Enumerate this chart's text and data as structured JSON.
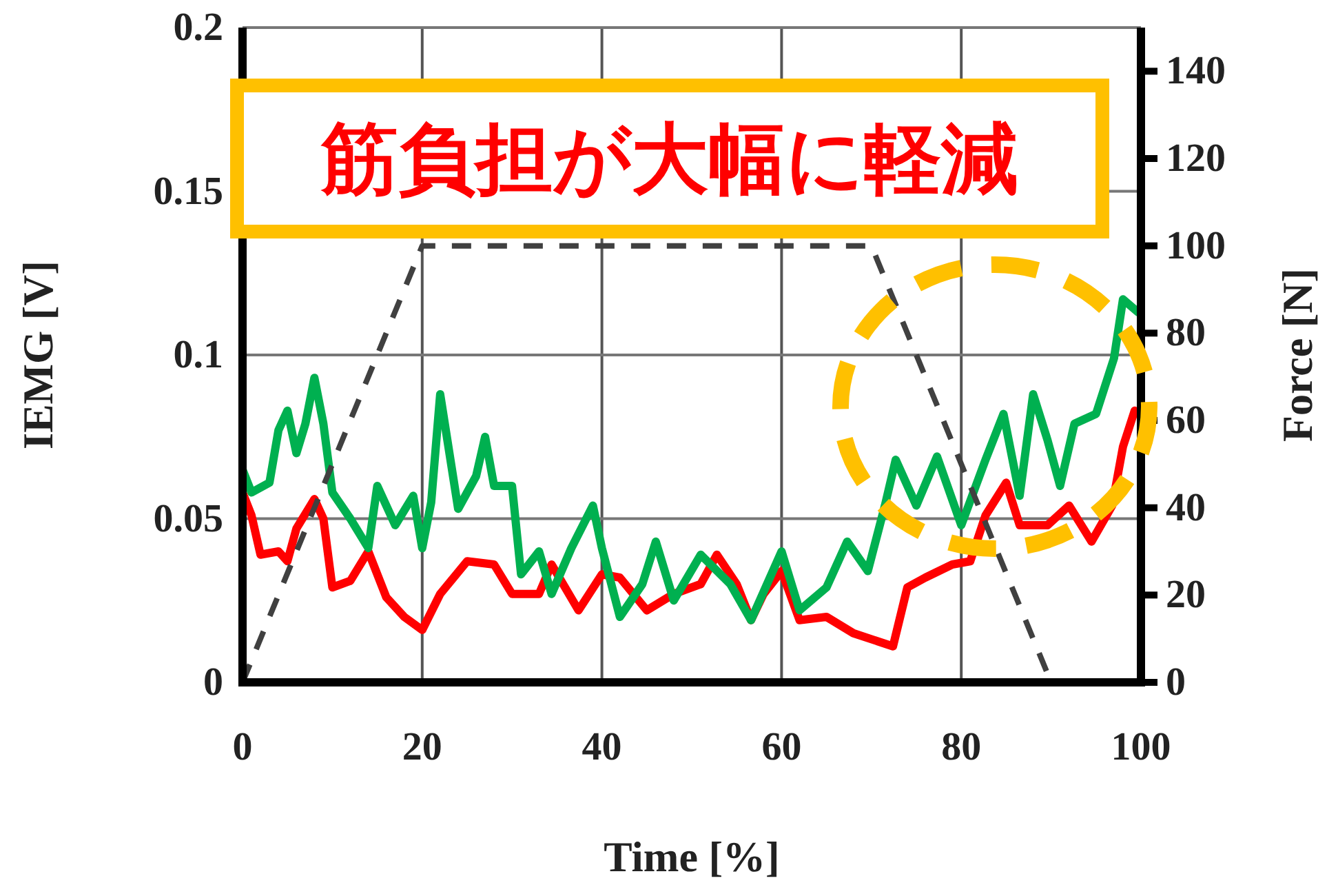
{
  "chart_data": {
    "type": "line",
    "xlabel": "Time [%]",
    "ylabel": "IEMG [V]",
    "y2label": "Force [N]",
    "annotations": [
      "筋負担が大幅に軽減"
    ],
    "xlim": [
      0,
      100
    ],
    "xticks": [
      0,
      20,
      40,
      60,
      80,
      100
    ],
    "ylim": [
      0,
      0.2
    ],
    "yticks": [
      0,
      0.05,
      0.1,
      0.15,
      0.2
    ],
    "y2lim": [
      0,
      150
    ],
    "y2ticks": [
      0,
      20,
      40,
      60,
      80,
      100,
      120,
      140
    ],
    "grid": true,
    "marker": "none",
    "series": [
      {
        "color": "#ff0000",
        "x": [
          0,
          1,
          2,
          4,
          5,
          6,
          8,
          9,
          10,
          12,
          14,
          16,
          18,
          20,
          22,
          25,
          28,
          30,
          33,
          34.4,
          37.4,
          40,
          42,
          45,
          48,
          51,
          52.8,
          55,
          56.6,
          58,
          60,
          62,
          65,
          68,
          72.4,
          74,
          76,
          79,
          81,
          82.7,
          85,
          86.5,
          89.6,
          92,
          94.5,
          96.8,
          98,
          99.3
        ],
        "values": [
          0.058,
          0.051,
          0.039,
          0.04,
          0.037,
          0.047,
          0.056,
          0.05,
          0.029,
          0.031,
          0.04,
          0.026,
          0.02,
          0.016,
          0.027,
          0.037,
          0.036,
          0.027,
          0.027,
          0.036,
          0.022,
          0.033,
          0.032,
          0.022,
          0.027,
          0.03,
          0.039,
          0.03,
          0.019,
          0.027,
          0.034,
          0.019,
          0.02,
          0.015,
          0.011,
          0.029,
          0.032,
          0.036,
          0.037,
          0.051,
          0.061,
          0.048,
          0.048,
          0.054,
          0.043,
          0.054,
          0.072,
          0.083
        ]
      },
      {
        "color": "#00b050",
        "x": [
          0,
          1,
          3,
          4,
          5,
          6,
          7,
          8,
          9,
          10,
          12,
          14,
          15,
          17,
          19,
          20,
          21,
          22,
          24,
          26,
          27,
          28,
          30,
          31,
          33,
          34.4,
          36.6,
          39,
          40,
          42,
          44.5,
          46,
          48,
          51,
          54.3,
          56.6,
          60,
          62,
          65,
          67.3,
          69.6,
          71.5,
          72.7,
          75,
          77.3,
          80,
          82.7,
          84.7,
          86.5,
          88,
          89.6,
          91,
          92.6,
          95,
          97,
          98,
          99.7
        ],
        "values": [
          0.065,
          0.058,
          0.061,
          0.077,
          0.083,
          0.07,
          0.079,
          0.093,
          0.079,
          0.058,
          0.05,
          0.041,
          0.06,
          0.048,
          0.057,
          0.041,
          0.055,
          0.088,
          0.053,
          0.063,
          0.075,
          0.06,
          0.06,
          0.033,
          0.04,
          0.027,
          0.041,
          0.054,
          0.041,
          0.02,
          0.03,
          0.043,
          0.025,
          0.039,
          0.03,
          0.019,
          0.04,
          0.022,
          0.029,
          0.043,
          0.034,
          0.054,
          0.068,
          0.054,
          0.069,
          0.048,
          0.068,
          0.082,
          0.057,
          0.088,
          0.074,
          0.06,
          0.079,
          0.082,
          0.099,
          0.117,
          0.113
        ]
      },
      {
        "color": "#404040",
        "axis": "y2",
        "line_style": "dashed",
        "x": [
          0,
          20,
          70,
          90,
          100
        ],
        "values": [
          0,
          100,
          100,
          0,
          0
        ]
      }
    ]
  }
}
